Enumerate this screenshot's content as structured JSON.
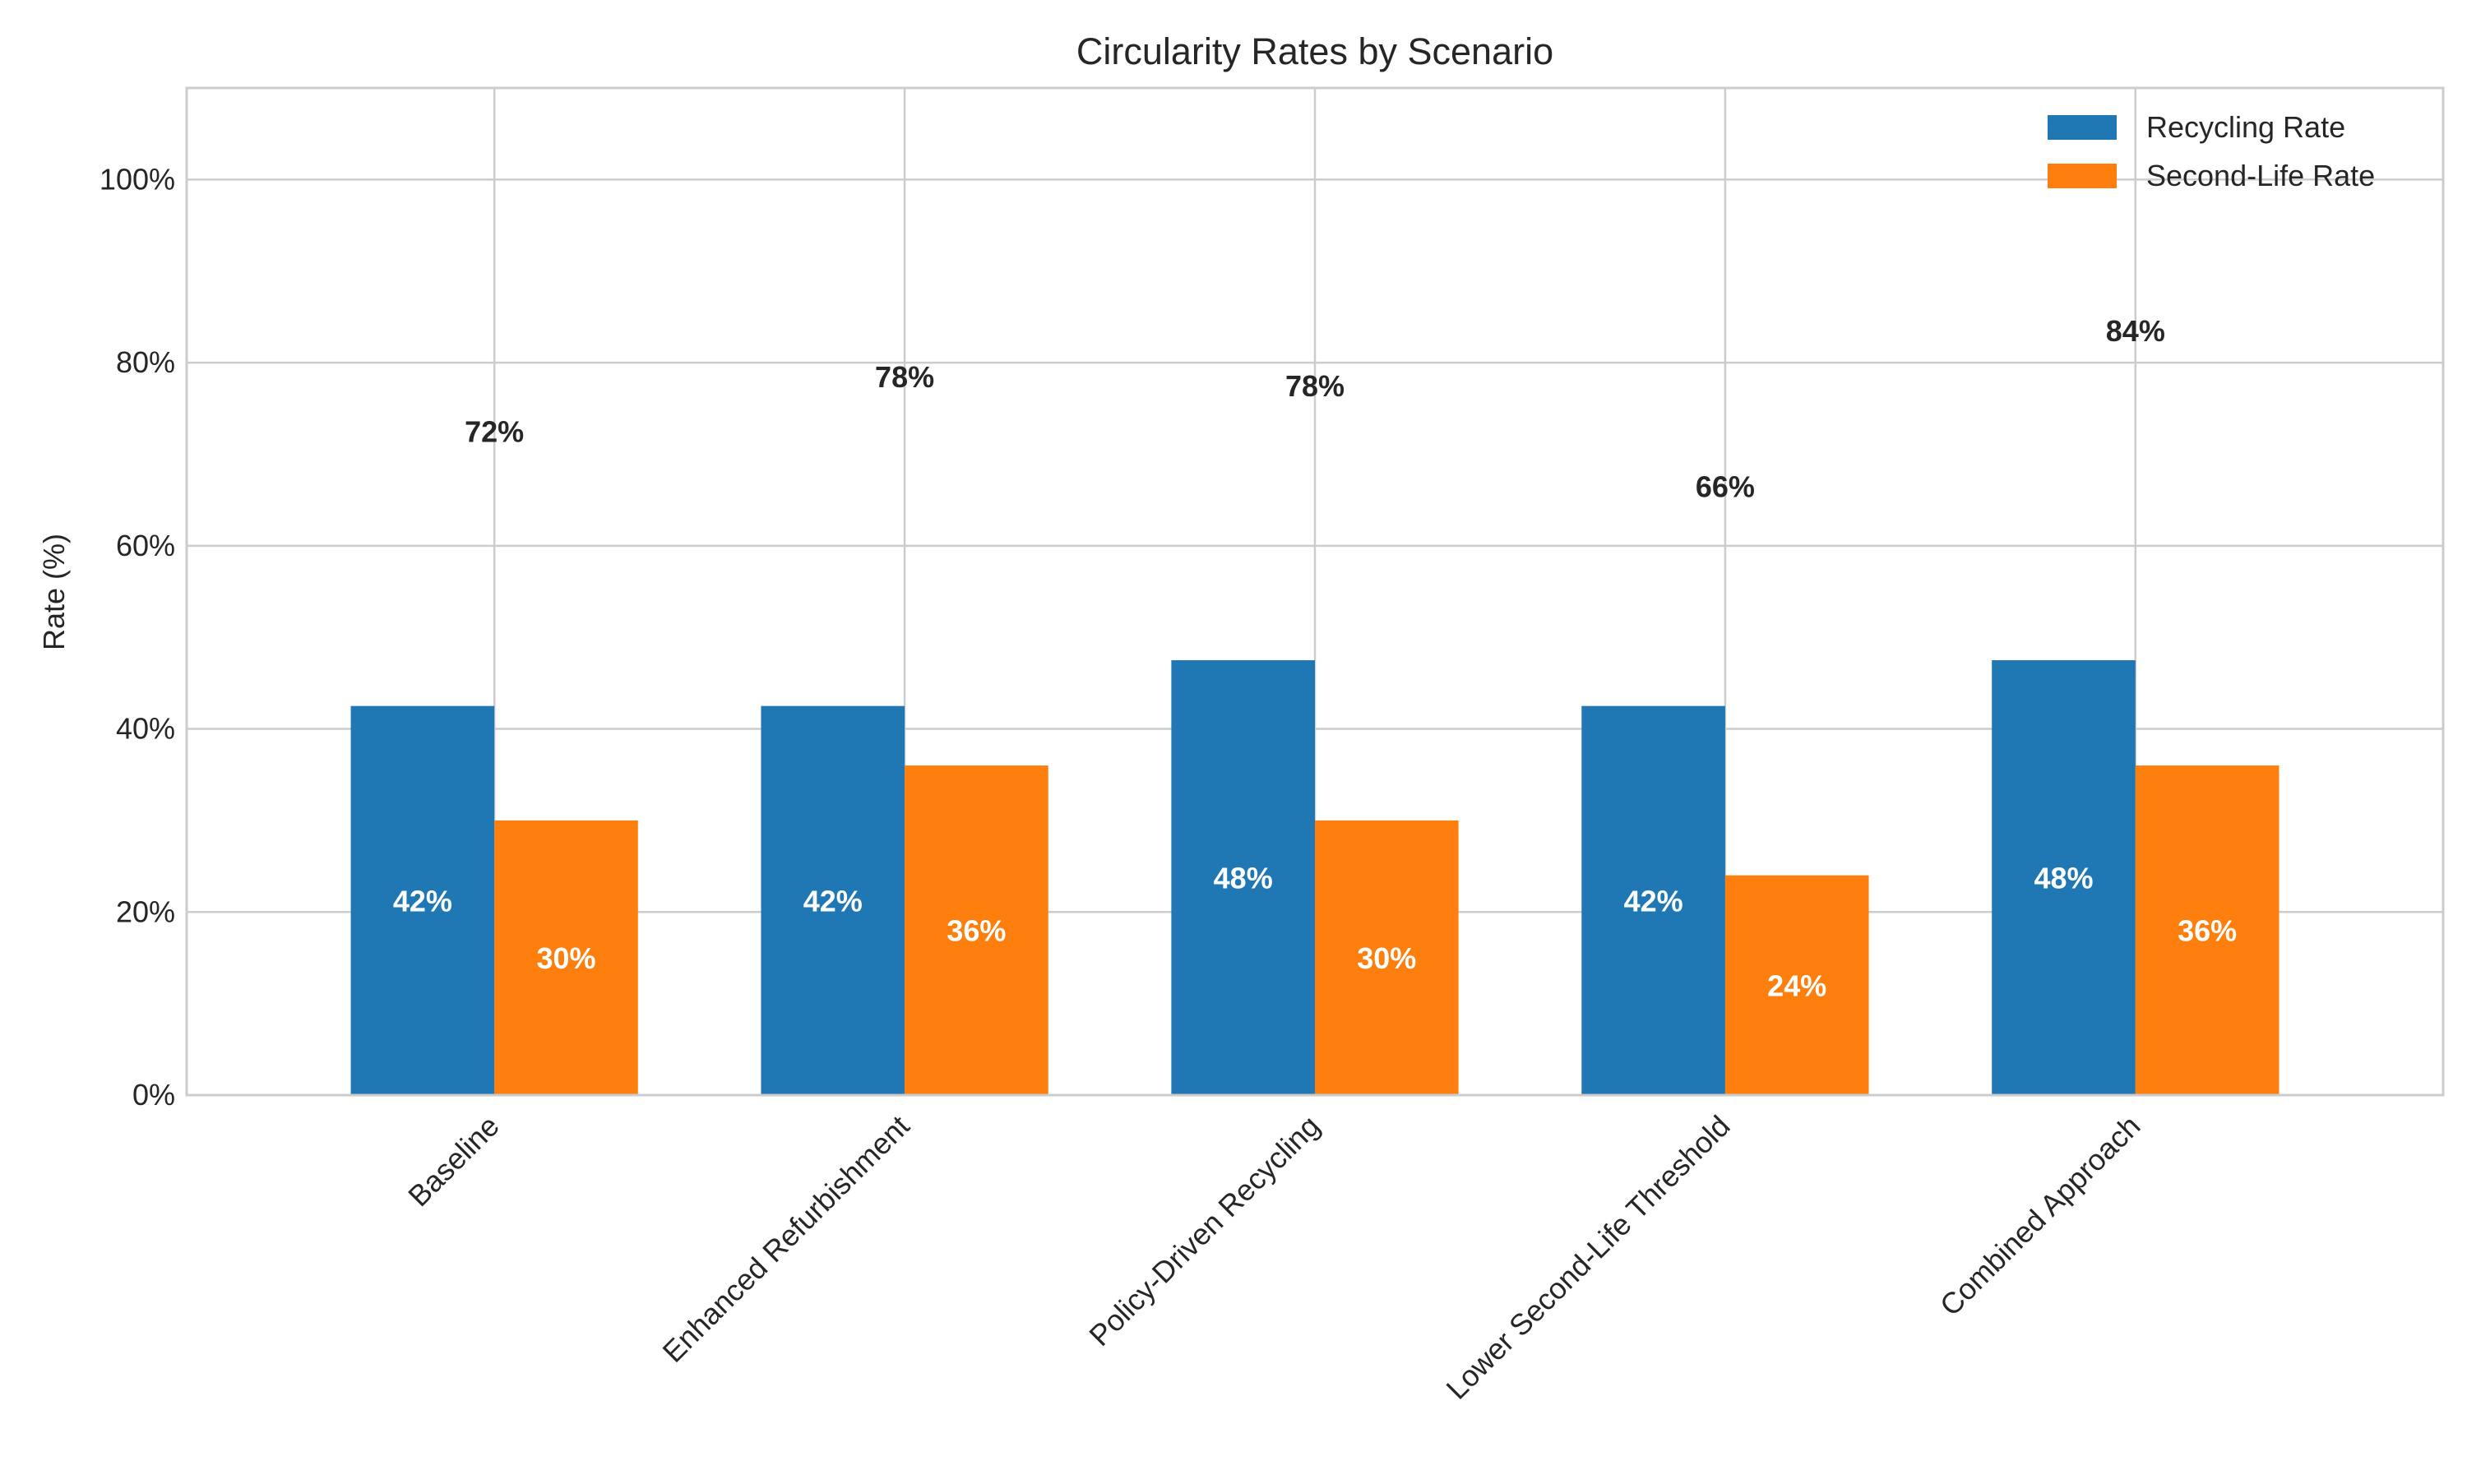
{
  "chart_data": {
    "type": "bar",
    "title": "Circularity Rates by Scenario",
    "xlabel": "",
    "ylabel": "Rate (%)",
    "ylim": [
      0,
      110
    ],
    "yticks": [
      0,
      20,
      40,
      60,
      80,
      100
    ],
    "ytick_labels": [
      "0%",
      "20%",
      "40%",
      "60%",
      "80%",
      "100%"
    ],
    "grid": true,
    "legend_position": "top-right",
    "categories": [
      "Baseline",
      "Enhanced Refurbishment",
      "Policy-Driven Recycling",
      "Lower Second-Life Threshold",
      "Combined Approach"
    ],
    "series": [
      {
        "name": "Recycling Rate",
        "color": "#1f77b4",
        "values": [
          42.5,
          42.5,
          47.5,
          42.5,
          47.5
        ],
        "value_labels": [
          "42%",
          "42%",
          "48%",
          "42%",
          "48%"
        ]
      },
      {
        "name": "Second-Life Rate",
        "color": "#ff7f0e",
        "values": [
          30,
          36,
          30,
          24,
          36
        ],
        "value_labels": [
          "30%",
          "36%",
          "30%",
          "24%",
          "36%"
        ]
      }
    ],
    "total_labels": [
      "72%",
      "78%",
      "78%",
      "66%",
      "84%"
    ]
  }
}
